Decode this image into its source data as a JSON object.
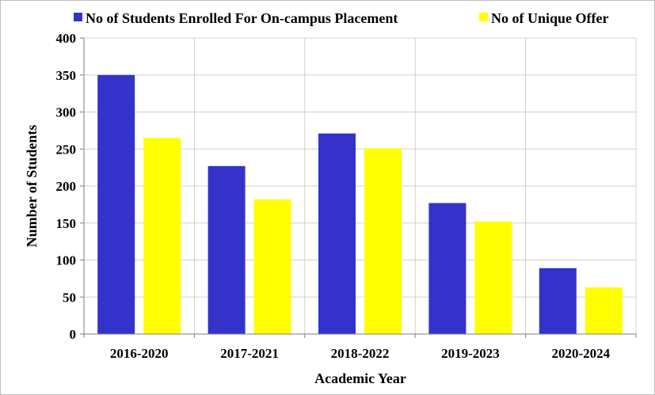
{
  "chart_data": {
    "type": "bar",
    "title": "",
    "xlabel": "Academic Year",
    "ylabel": "Number of Students",
    "categories": [
      "2016-2020",
      "2017-2021",
      "2018-2022",
      "2019-2023",
      "2020-2024"
    ],
    "series": [
      {
        "name": "No of Students Enrolled For On-campus Placement",
        "color": "#3333cc",
        "values": [
          350,
          227,
          271,
          177,
          89
        ]
      },
      {
        "name": "No of Unique Offer",
        "color": "#ffff00",
        "values": [
          265,
          182,
          251,
          152,
          63
        ]
      }
    ],
    "ylim": [
      0,
      400
    ],
    "yticks": [
      0,
      50,
      100,
      150,
      200,
      250,
      300,
      350,
      400
    ],
    "grid": true,
    "legend_position": "top"
  }
}
